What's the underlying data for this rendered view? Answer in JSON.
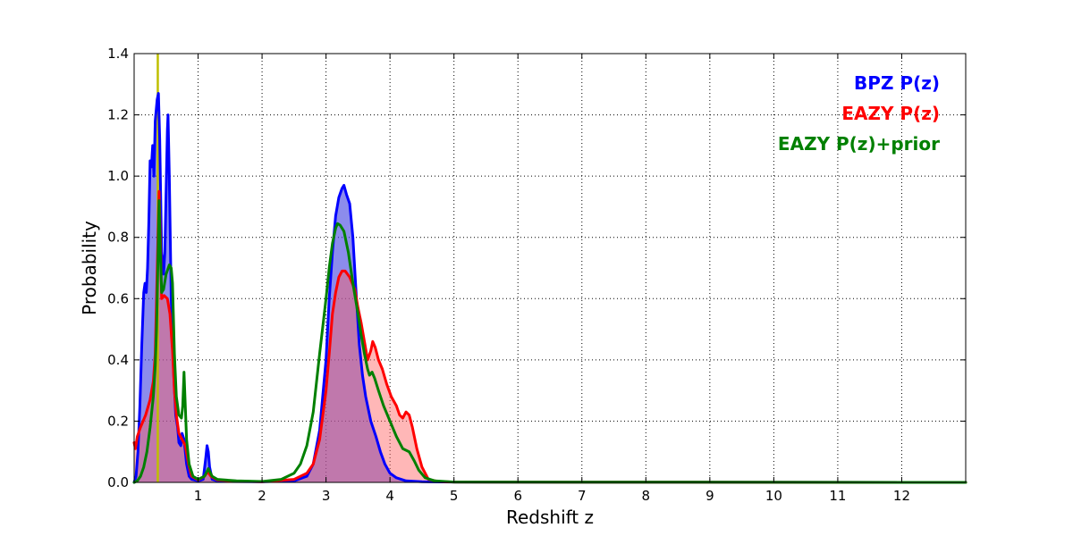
{
  "chart_data": {
    "type": "area",
    "xlabel": "Redshift z",
    "ylabel": "Probability",
    "xlim": [
      0,
      13
    ],
    "ylim": [
      0,
      1.4
    ],
    "x_ticks": [
      1,
      2,
      3,
      4,
      5,
      6,
      7,
      8,
      9,
      10,
      11,
      12
    ],
    "x_grid": [
      1,
      2,
      3,
      4,
      5,
      6,
      7,
      8,
      9,
      10,
      11,
      12,
      13
    ],
    "y_ticks": [
      0.0,
      0.2,
      0.4,
      0.6,
      0.8,
      1.0,
      1.2,
      1.4
    ],
    "y_tick_labels": [
      "0.0",
      "0.2",
      "0.4",
      "0.6",
      "0.8",
      "1.0",
      "1.2",
      "1.4"
    ],
    "grid": true,
    "grid_style": "dotted",
    "legend_position": "top-right",
    "vertical_line": {
      "x": 0.37,
      "color": "#bfbf00"
    },
    "series": [
      {
        "name": "BPZ P(z)",
        "color": "#0000ff",
        "fill": "#4040e0",
        "fill_opacity": 0.6,
        "points": [
          [
            0.0,
            0.0
          ],
          [
            0.03,
            0.02
          ],
          [
            0.06,
            0.1
          ],
          [
            0.09,
            0.25
          ],
          [
            0.12,
            0.45
          ],
          [
            0.15,
            0.62
          ],
          [
            0.17,
            0.65
          ],
          [
            0.19,
            0.62
          ],
          [
            0.21,
            0.7
          ],
          [
            0.23,
            0.85
          ],
          [
            0.25,
            1.05
          ],
          [
            0.27,
            1.03
          ],
          [
            0.29,
            1.1
          ],
          [
            0.31,
            1.0
          ],
          [
            0.33,
            1.18
          ],
          [
            0.36,
            1.25
          ],
          [
            0.38,
            1.27
          ],
          [
            0.4,
            1.12
          ],
          [
            0.43,
            0.75
          ],
          [
            0.46,
            0.68
          ],
          [
            0.48,
            0.75
          ],
          [
            0.5,
            0.95
          ],
          [
            0.52,
            1.15
          ],
          [
            0.53,
            1.2
          ],
          [
            0.55,
            1.0
          ],
          [
            0.58,
            0.6
          ],
          [
            0.6,
            0.48
          ],
          [
            0.62,
            0.35
          ],
          [
            0.65,
            0.22
          ],
          [
            0.68,
            0.18
          ],
          [
            0.7,
            0.13
          ],
          [
            0.73,
            0.12
          ],
          [
            0.75,
            0.16
          ],
          [
            0.78,
            0.14
          ],
          [
            0.82,
            0.06
          ],
          [
            0.86,
            0.02
          ],
          [
            0.9,
            0.01
          ],
          [
            1.0,
            0.005
          ],
          [
            1.08,
            0.01
          ],
          [
            1.12,
            0.08
          ],
          [
            1.14,
            0.12
          ],
          [
            1.16,
            0.1
          ],
          [
            1.18,
            0.05
          ],
          [
            1.22,
            0.01
          ],
          [
            1.3,
            0.005
          ],
          [
            1.5,
            0.003
          ],
          [
            2.0,
            0.002
          ],
          [
            2.5,
            0.005
          ],
          [
            2.7,
            0.02
          ],
          [
            2.8,
            0.06
          ],
          [
            2.9,
            0.17
          ],
          [
            3.0,
            0.4
          ],
          [
            3.05,
            0.6
          ],
          [
            3.1,
            0.75
          ],
          [
            3.15,
            0.87
          ],
          [
            3.2,
            0.93
          ],
          [
            3.25,
            0.96
          ],
          [
            3.28,
            0.97
          ],
          [
            3.32,
            0.94
          ],
          [
            3.37,
            0.91
          ],
          [
            3.42,
            0.8
          ],
          [
            3.47,
            0.62
          ],
          [
            3.52,
            0.45
          ],
          [
            3.57,
            0.35
          ],
          [
            3.62,
            0.28
          ],
          [
            3.7,
            0.2
          ],
          [
            3.78,
            0.15
          ],
          [
            3.85,
            0.1
          ],
          [
            3.92,
            0.06
          ],
          [
            4.0,
            0.03
          ],
          [
            4.1,
            0.015
          ],
          [
            4.25,
            0.005
          ],
          [
            4.5,
            0.002
          ],
          [
            5.0,
            0.001
          ],
          [
            13.0,
            0.0
          ]
        ]
      },
      {
        "name": "EAZY P(z)",
        "color": "#ff0000",
        "fill": "#ff6060",
        "fill_opacity": 0.45,
        "points": [
          [
            0.0,
            0.13
          ],
          [
            0.02,
            0.11
          ],
          [
            0.05,
            0.15
          ],
          [
            0.1,
            0.18
          ],
          [
            0.18,
            0.22
          ],
          [
            0.25,
            0.27
          ],
          [
            0.3,
            0.33
          ],
          [
            0.33,
            0.42
          ],
          [
            0.35,
            0.6
          ],
          [
            0.37,
            0.78
          ],
          [
            0.39,
            0.95
          ],
          [
            0.41,
            0.8
          ],
          [
            0.43,
            0.6
          ],
          [
            0.47,
            0.61
          ],
          [
            0.52,
            0.6
          ],
          [
            0.56,
            0.55
          ],
          [
            0.6,
            0.43
          ],
          [
            0.63,
            0.3
          ],
          [
            0.66,
            0.22
          ],
          [
            0.7,
            0.16
          ],
          [
            0.75,
            0.14
          ],
          [
            0.8,
            0.12
          ],
          [
            0.85,
            0.06
          ],
          [
            0.9,
            0.02
          ],
          [
            1.0,
            0.008
          ],
          [
            1.1,
            0.02
          ],
          [
            1.15,
            0.035
          ],
          [
            1.2,
            0.02
          ],
          [
            1.3,
            0.008
          ],
          [
            1.6,
            0.004
          ],
          [
            2.0,
            0.002
          ],
          [
            2.5,
            0.01
          ],
          [
            2.7,
            0.03
          ],
          [
            2.8,
            0.06
          ],
          [
            2.9,
            0.14
          ],
          [
            3.0,
            0.3
          ],
          [
            3.05,
            0.42
          ],
          [
            3.1,
            0.55
          ],
          [
            3.15,
            0.62
          ],
          [
            3.2,
            0.67
          ],
          [
            3.25,
            0.69
          ],
          [
            3.3,
            0.69
          ],
          [
            3.37,
            0.67
          ],
          [
            3.45,
            0.63
          ],
          [
            3.5,
            0.57
          ],
          [
            3.55,
            0.52
          ],
          [
            3.6,
            0.46
          ],
          [
            3.65,
            0.4
          ],
          [
            3.7,
            0.43
          ],
          [
            3.73,
            0.46
          ],
          [
            3.77,
            0.44
          ],
          [
            3.82,
            0.4
          ],
          [
            3.88,
            0.37
          ],
          [
            3.95,
            0.32
          ],
          [
            4.02,
            0.28
          ],
          [
            4.1,
            0.25
          ],
          [
            4.15,
            0.22
          ],
          [
            4.2,
            0.21
          ],
          [
            4.25,
            0.23
          ],
          [
            4.3,
            0.22
          ],
          [
            4.35,
            0.18
          ],
          [
            4.42,
            0.11
          ],
          [
            4.5,
            0.05
          ],
          [
            4.6,
            0.01
          ],
          [
            4.75,
            0.003
          ],
          [
            5.0,
            0.001
          ],
          [
            13.0,
            0.0
          ]
        ]
      },
      {
        "name": "EAZY P(z)+prior",
        "color": "#008000",
        "fill": "none",
        "fill_opacity": 0.0,
        "points": [
          [
            0.0,
            0.0
          ],
          [
            0.05,
            0.005
          ],
          [
            0.1,
            0.02
          ],
          [
            0.15,
            0.05
          ],
          [
            0.2,
            0.1
          ],
          [
            0.25,
            0.18
          ],
          [
            0.3,
            0.28
          ],
          [
            0.33,
            0.38
          ],
          [
            0.35,
            0.5
          ],
          [
            0.37,
            0.7
          ],
          [
            0.39,
            0.92
          ],
          [
            0.41,
            0.75
          ],
          [
            0.43,
            0.62
          ],
          [
            0.46,
            0.63
          ],
          [
            0.5,
            0.68
          ],
          [
            0.55,
            0.71
          ],
          [
            0.58,
            0.7
          ],
          [
            0.6,
            0.65
          ],
          [
            0.63,
            0.42
          ],
          [
            0.66,
            0.28
          ],
          [
            0.7,
            0.22
          ],
          [
            0.74,
            0.21
          ],
          [
            0.76,
            0.25
          ],
          [
            0.78,
            0.36
          ],
          [
            0.8,
            0.25
          ],
          [
            0.82,
            0.14
          ],
          [
            0.86,
            0.06
          ],
          [
            0.92,
            0.02
          ],
          [
            1.0,
            0.01
          ],
          [
            1.1,
            0.02
          ],
          [
            1.16,
            0.045
          ],
          [
            1.22,
            0.02
          ],
          [
            1.3,
            0.01
          ],
          [
            1.6,
            0.005
          ],
          [
            2.0,
            0.003
          ],
          [
            2.3,
            0.01
          ],
          [
            2.5,
            0.03
          ],
          [
            2.6,
            0.06
          ],
          [
            2.7,
            0.12
          ],
          [
            2.8,
            0.23
          ],
          [
            2.9,
            0.42
          ],
          [
            3.0,
            0.6
          ],
          [
            3.05,
            0.7
          ],
          [
            3.1,
            0.78
          ],
          [
            3.15,
            0.83
          ],
          [
            3.18,
            0.845
          ],
          [
            3.22,
            0.84
          ],
          [
            3.28,
            0.82
          ],
          [
            3.35,
            0.75
          ],
          [
            3.42,
            0.65
          ],
          [
            3.5,
            0.55
          ],
          [
            3.55,
            0.48
          ],
          [
            3.6,
            0.42
          ],
          [
            3.65,
            0.37
          ],
          [
            3.68,
            0.35
          ],
          [
            3.72,
            0.36
          ],
          [
            3.76,
            0.34
          ],
          [
            3.82,
            0.3
          ],
          [
            3.9,
            0.25
          ],
          [
            4.0,
            0.2
          ],
          [
            4.1,
            0.15
          ],
          [
            4.2,
            0.11
          ],
          [
            4.3,
            0.1
          ],
          [
            4.38,
            0.07
          ],
          [
            4.45,
            0.04
          ],
          [
            4.55,
            0.015
          ],
          [
            4.7,
            0.005
          ],
          [
            5.0,
            0.001
          ],
          [
            13.0,
            0.0
          ]
        ]
      }
    ]
  }
}
